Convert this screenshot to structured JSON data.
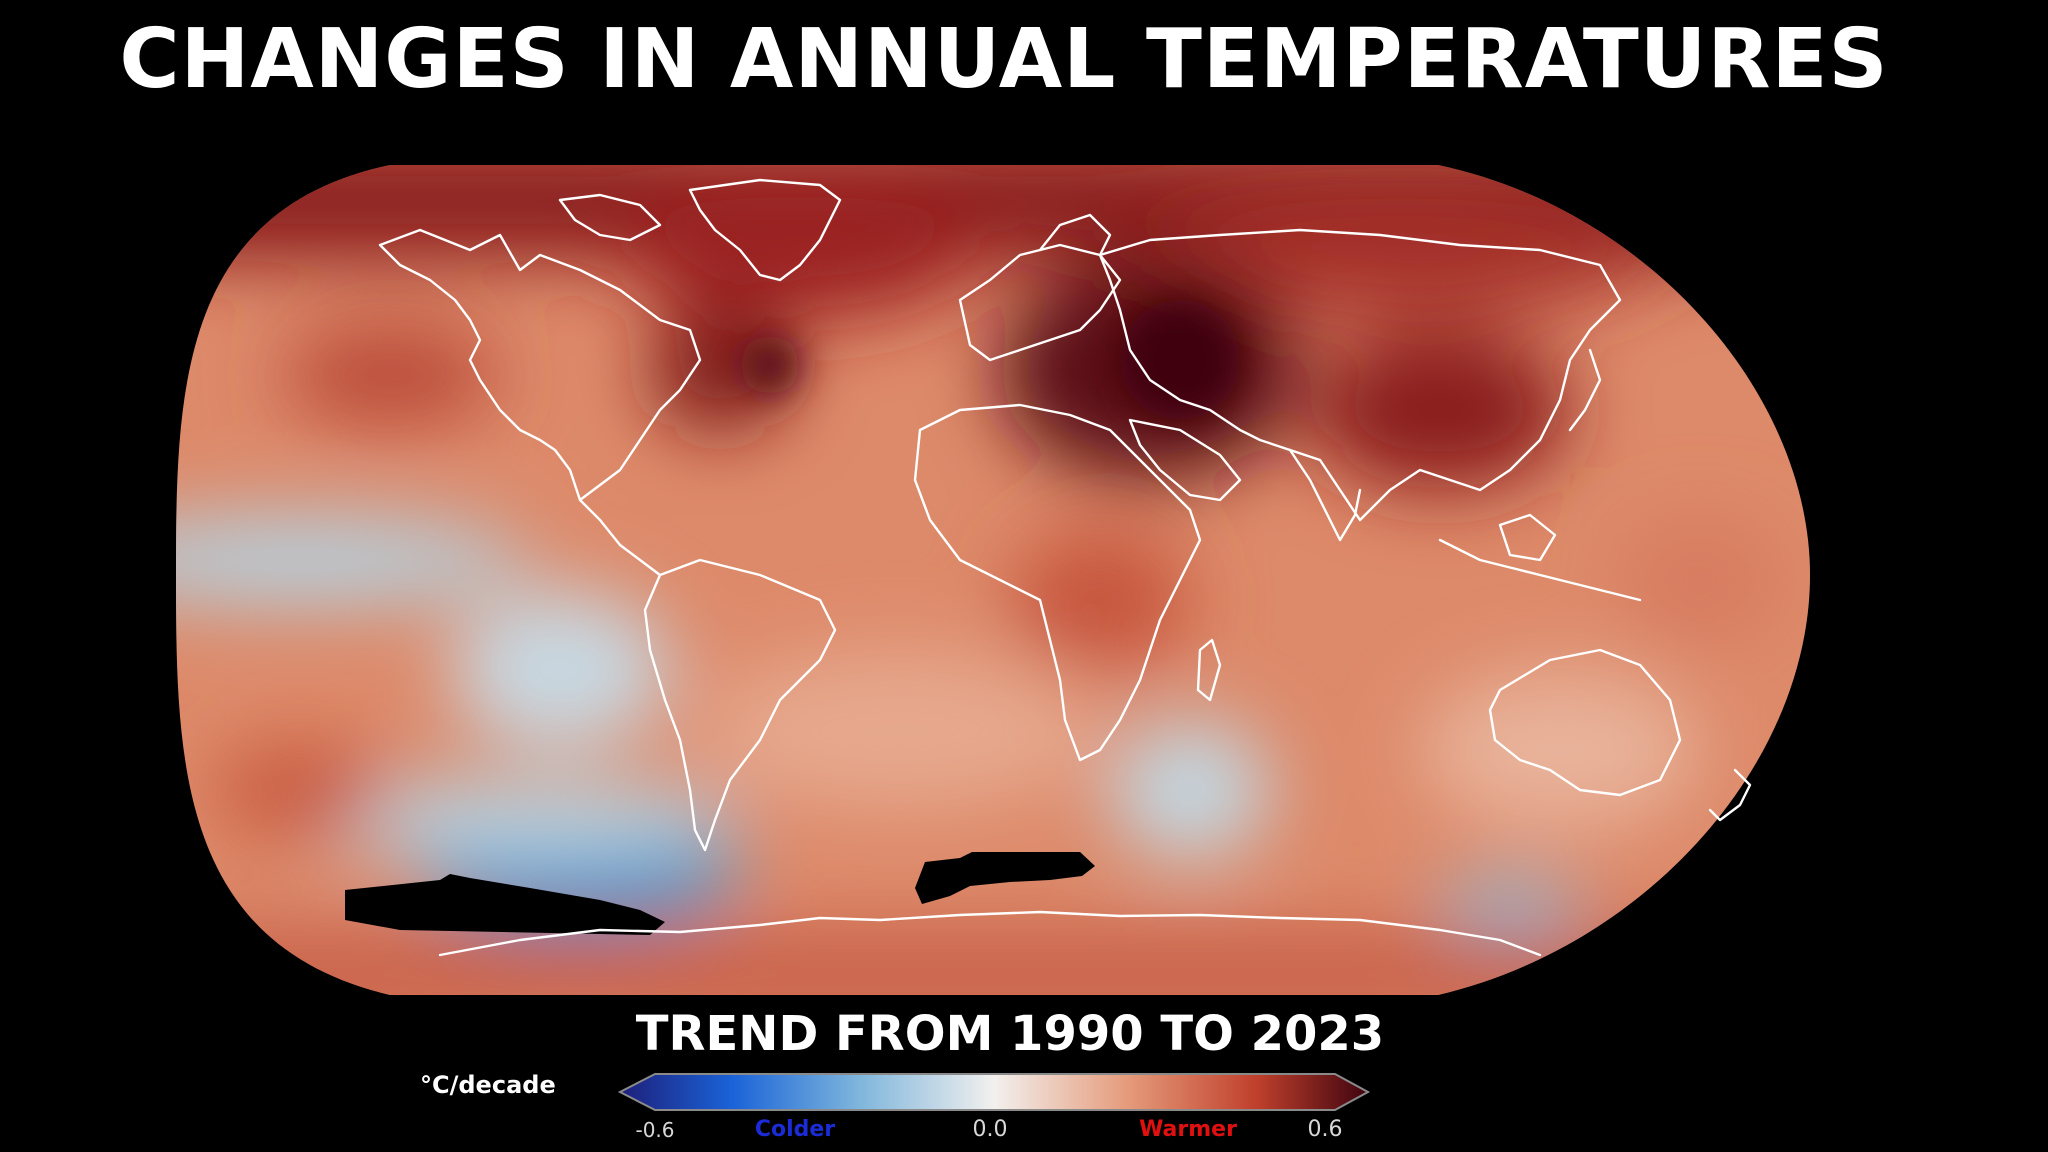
{
  "title": "CHANGES IN ANNUAL TEMPERATURES",
  "subtitle": "TREND FROM 1990 TO 2023",
  "colorbar": {
    "units": "°C/decade",
    "min_label": "-0.6",
    "mid_label": "0.0",
    "max_label": "0.6",
    "colder_label": "Colder",
    "warmer_label": "Warmer",
    "min_value": -0.6,
    "max_value": 0.6,
    "stops": [
      {
        "value": -0.6,
        "color": "#1e1f7a"
      },
      {
        "value": -0.42,
        "color": "#1a63d8"
      },
      {
        "value": -0.22,
        "color": "#7fb6dc"
      },
      {
        "value": 0.0,
        "color": "#f2f0ee"
      },
      {
        "value": 0.22,
        "color": "#e59a7a"
      },
      {
        "value": 0.42,
        "color": "#c0402c"
      },
      {
        "value": 0.6,
        "color": "#3f0410"
      }
    ]
  },
  "map": {
    "projection": "Robinson",
    "background": "#000000",
    "coastline_color": "#ffffff",
    "no_data_color": "#000000"
  }
}
